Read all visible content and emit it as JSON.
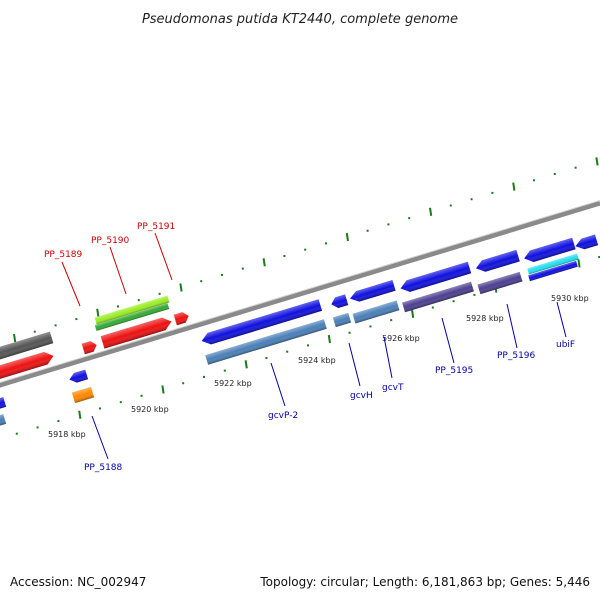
{
  "title": "Pseudomonas putida KT2440, complete genome",
  "footer": {
    "accession": "Accession: NC_002947",
    "summary": "Topology: circular; Length: 6,181,863 bp; Genes: 5,446"
  },
  "colors": {
    "backbone": "#8a8a8a",
    "tick": "#1a7a1a",
    "label_red": "#cc0000",
    "label_blue": "#0000aa",
    "gene_blue": "#1010e0",
    "gene_steel": "#4a7fb8",
    "gene_red": "#ee1111",
    "gene_grey": "#555555",
    "gene_orange": "#ff8800",
    "gene_purple": "#4c3f90",
    "gene_cyan": "#22e0f0",
    "gene_lime": "#99ee22",
    "gene_green": "#33aa33"
  },
  "scale": {
    "ticks": [
      {
        "label": "5918 kbp"
      },
      {
        "label": "5920 kbp"
      },
      {
        "label": "5922 kbp"
      },
      {
        "label": "5924 kbp"
      },
      {
        "label": "5926 kbp"
      },
      {
        "label": "5928 kbp"
      },
      {
        "label": "5930 kbp"
      }
    ]
  },
  "genes": [
    {
      "label": "PP_5188",
      "strand": "-",
      "color": "label_blue"
    },
    {
      "label": "PP_5189",
      "strand": "+",
      "color": "label_red"
    },
    {
      "label": "PP_5190",
      "strand": "+",
      "color": "label_red"
    },
    {
      "label": "PP_5191",
      "strand": "+",
      "color": "label_red"
    },
    {
      "label": "gcvP-2",
      "strand": "-",
      "color": "label_blue"
    },
    {
      "label": "gcvH",
      "strand": "-",
      "color": "label_blue"
    },
    {
      "label": "gcvT",
      "strand": "-",
      "color": "label_blue"
    },
    {
      "label": "PP_5195",
      "strand": "-",
      "color": "label_blue"
    },
    {
      "label": "PP_5196",
      "strand": "-",
      "color": "label_blue"
    },
    {
      "label": "ubiF",
      "strand": "-",
      "color": "label_blue"
    }
  ]
}
